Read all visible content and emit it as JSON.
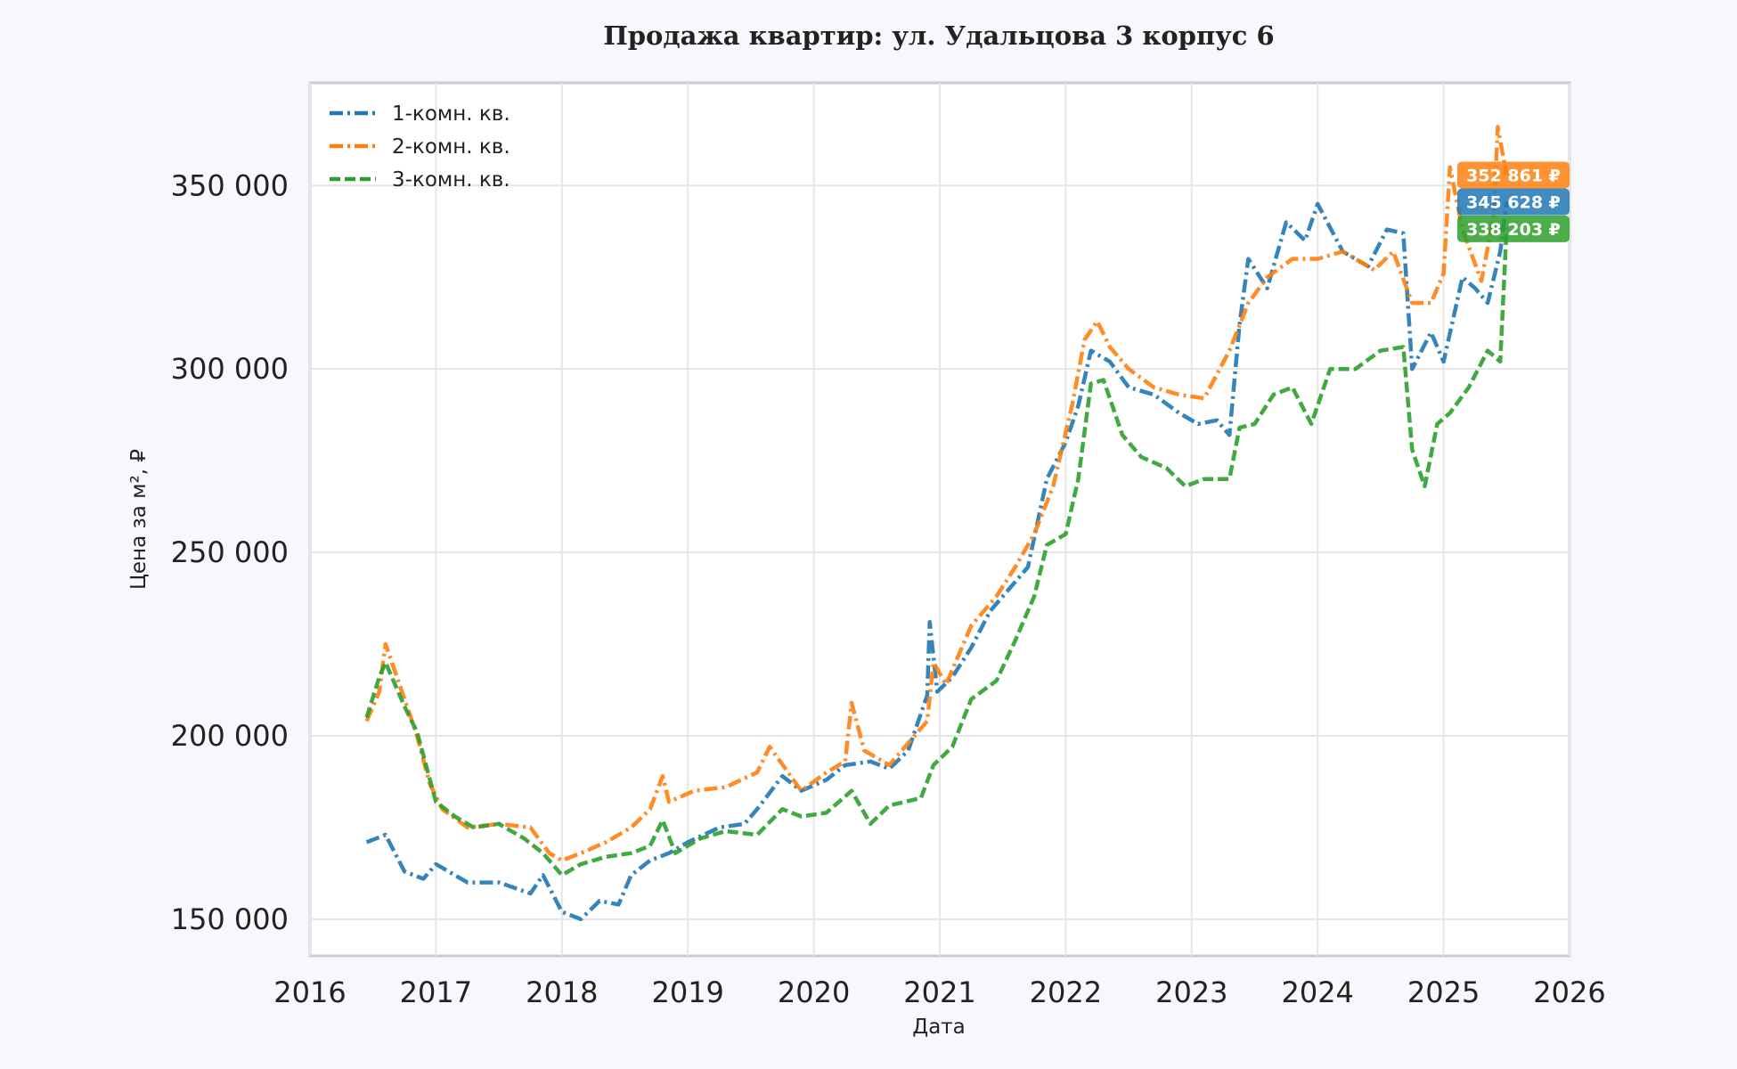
{
  "chart_data": {
    "type": "line",
    "title": "Продажа квартир: ул. Удальцова 3 корпус 6",
    "xlabel": "Дата",
    "ylabel": "Цена за м², ₽",
    "xlim": [
      2016,
      2026
    ],
    "ylim": [
      140000,
      378000
    ],
    "x_ticks": [
      "2016",
      "2017",
      "2018",
      "2019",
      "2020",
      "2021",
      "2022",
      "2023",
      "2024",
      "2025",
      "2026"
    ],
    "y_ticks": [
      "150 000",
      "200 000",
      "250 000",
      "300 000",
      "350 000"
    ],
    "grid": true,
    "legend_position": "top-left",
    "series": [
      {
        "name": "1-комн. кв.",
        "color": "#1f77b4",
        "dash": "dash-dot",
        "last_value_label": "345 628 ₽",
        "points": [
          [
            2016.45,
            171000
          ],
          [
            2016.6,
            173000
          ],
          [
            2016.75,
            163000
          ],
          [
            2016.9,
            161000
          ],
          [
            2017.0,
            165000
          ],
          [
            2017.25,
            160000
          ],
          [
            2017.5,
            160000
          ],
          [
            2017.75,
            157000
          ],
          [
            2017.85,
            162000
          ],
          [
            2018.0,
            152000
          ],
          [
            2018.15,
            150000
          ],
          [
            2018.3,
            155000
          ],
          [
            2018.45,
            154000
          ],
          [
            2018.55,
            162000
          ],
          [
            2018.7,
            166000
          ],
          [
            2018.85,
            168000
          ],
          [
            2019.0,
            171000
          ],
          [
            2019.25,
            175000
          ],
          [
            2019.45,
            176000
          ],
          [
            2019.55,
            180000
          ],
          [
            2019.75,
            189000
          ],
          [
            2019.9,
            185000
          ],
          [
            2020.1,
            188000
          ],
          [
            2020.25,
            192000
          ],
          [
            2020.45,
            193000
          ],
          [
            2020.6,
            191000
          ],
          [
            2020.75,
            196000
          ],
          [
            2020.9,
            211000
          ],
          [
            2020.92,
            231000
          ],
          [
            2020.98,
            212000
          ],
          [
            2021.1,
            216000
          ],
          [
            2021.25,
            224000
          ],
          [
            2021.4,
            234000
          ],
          [
            2021.55,
            240000
          ],
          [
            2021.7,
            246000
          ],
          [
            2021.85,
            270000
          ],
          [
            2022.0,
            280000
          ],
          [
            2022.1,
            290000
          ],
          [
            2022.2,
            305000
          ],
          [
            2022.35,
            302000
          ],
          [
            2022.5,
            295000
          ],
          [
            2022.7,
            293000
          ],
          [
            2022.9,
            288000
          ],
          [
            2023.05,
            285000
          ],
          [
            2023.2,
            286000
          ],
          [
            2023.3,
            282000
          ],
          [
            2023.38,
            312000
          ],
          [
            2023.45,
            330000
          ],
          [
            2023.6,
            322000
          ],
          [
            2023.75,
            340000
          ],
          [
            2023.9,
            335000
          ],
          [
            2024.0,
            345000
          ],
          [
            2024.2,
            332000
          ],
          [
            2024.4,
            328000
          ],
          [
            2024.55,
            338000
          ],
          [
            2024.68,
            337000
          ],
          [
            2024.75,
            300000
          ],
          [
            2024.9,
            310000
          ],
          [
            2025.0,
            302000
          ],
          [
            2025.15,
            325000
          ],
          [
            2025.25,
            322000
          ],
          [
            2025.35,
            318000
          ],
          [
            2025.45,
            332000
          ],
          [
            2025.5,
            345628
          ]
        ]
      },
      {
        "name": "2-комн. кв.",
        "color": "#ff7f0e",
        "dash": "dash-dot",
        "last_value_label": "352 861 ₽",
        "points": [
          [
            2016.45,
            204000
          ],
          [
            2016.55,
            212000
          ],
          [
            2016.6,
            225000
          ],
          [
            2016.75,
            210000
          ],
          [
            2016.85,
            200000
          ],
          [
            2016.95,
            187000
          ],
          [
            2017.05,
            180000
          ],
          [
            2017.25,
            175000
          ],
          [
            2017.5,
            176000
          ],
          [
            2017.75,
            175000
          ],
          [
            2017.9,
            168000
          ],
          [
            2018.0,
            166000
          ],
          [
            2018.15,
            168000
          ],
          [
            2018.35,
            171000
          ],
          [
            2018.55,
            175000
          ],
          [
            2018.7,
            180000
          ],
          [
            2018.8,
            189000
          ],
          [
            2018.85,
            182000
          ],
          [
            2019.05,
            185000
          ],
          [
            2019.3,
            186000
          ],
          [
            2019.55,
            190000
          ],
          [
            2019.65,
            197000
          ],
          [
            2019.9,
            185000
          ],
          [
            2020.1,
            190000
          ],
          [
            2020.25,
            193000
          ],
          [
            2020.3,
            209000
          ],
          [
            2020.4,
            196000
          ],
          [
            2020.6,
            192000
          ],
          [
            2020.75,
            198000
          ],
          [
            2020.9,
            204000
          ],
          [
            2020.95,
            220000
          ],
          [
            2021.05,
            214000
          ],
          [
            2021.25,
            230000
          ],
          [
            2021.45,
            238000
          ],
          [
            2021.6,
            246000
          ],
          [
            2021.75,
            255000
          ],
          [
            2021.9,
            268000
          ],
          [
            2022.05,
            290000
          ],
          [
            2022.15,
            308000
          ],
          [
            2022.25,
            313000
          ],
          [
            2022.35,
            306000
          ],
          [
            2022.5,
            300000
          ],
          [
            2022.7,
            295000
          ],
          [
            2022.9,
            293000
          ],
          [
            2023.1,
            292000
          ],
          [
            2023.3,
            305000
          ],
          [
            2023.45,
            318000
          ],
          [
            2023.6,
            325000
          ],
          [
            2023.8,
            330000
          ],
          [
            2024.0,
            330000
          ],
          [
            2024.2,
            332000
          ],
          [
            2024.45,
            327000
          ],
          [
            2024.6,
            332000
          ],
          [
            2024.75,
            318000
          ],
          [
            2024.9,
            318000
          ],
          [
            2025.0,
            326000
          ],
          [
            2025.05,
            355000
          ],
          [
            2025.15,
            338000
          ],
          [
            2025.3,
            324000
          ],
          [
            2025.4,
            342000
          ],
          [
            2025.43,
            366000
          ],
          [
            2025.5,
            352861
          ]
        ]
      },
      {
        "name": "3-комн. кв.",
        "color": "#2ca02c",
        "dash": "dashed",
        "last_value_label": "338 203 ₽",
        "points": [
          [
            2016.45,
            205000
          ],
          [
            2016.55,
            216000
          ],
          [
            2016.6,
            220000
          ],
          [
            2016.75,
            208000
          ],
          [
            2016.85,
            201000
          ],
          [
            2017.0,
            182000
          ],
          [
            2017.15,
            178000
          ],
          [
            2017.3,
            175000
          ],
          [
            2017.5,
            176000
          ],
          [
            2017.7,
            172000
          ],
          [
            2017.85,
            168000
          ],
          [
            2018.0,
            162000
          ],
          [
            2018.15,
            165000
          ],
          [
            2018.35,
            167000
          ],
          [
            2018.55,
            168000
          ],
          [
            2018.7,
            170000
          ],
          [
            2018.8,
            177000
          ],
          [
            2018.9,
            168000
          ],
          [
            2019.1,
            172000
          ],
          [
            2019.3,
            174000
          ],
          [
            2019.55,
            173000
          ],
          [
            2019.75,
            180000
          ],
          [
            2019.9,
            178000
          ],
          [
            2020.1,
            179000
          ],
          [
            2020.3,
            185000
          ],
          [
            2020.45,
            176000
          ],
          [
            2020.6,
            181000
          ],
          [
            2020.85,
            183000
          ],
          [
            2020.95,
            192000
          ],
          [
            2021.1,
            197000
          ],
          [
            2021.25,
            210000
          ],
          [
            2021.45,
            215000
          ],
          [
            2021.6,
            226000
          ],
          [
            2021.75,
            238000
          ],
          [
            2021.85,
            252000
          ],
          [
            2022.0,
            255000
          ],
          [
            2022.1,
            270000
          ],
          [
            2022.2,
            296000
          ],
          [
            2022.3,
            297000
          ],
          [
            2022.45,
            282000
          ],
          [
            2022.6,
            276000
          ],
          [
            2022.8,
            273000
          ],
          [
            2022.95,
            268000
          ],
          [
            2023.1,
            270000
          ],
          [
            2023.3,
            270000
          ],
          [
            2023.38,
            284000
          ],
          [
            2023.5,
            285000
          ],
          [
            2023.65,
            293000
          ],
          [
            2023.8,
            295000
          ],
          [
            2023.95,
            285000
          ],
          [
            2024.1,
            300000
          ],
          [
            2024.3,
            300000
          ],
          [
            2024.5,
            305000
          ],
          [
            2024.68,
            306000
          ],
          [
            2024.75,
            278000
          ],
          [
            2024.85,
            268000
          ],
          [
            2024.95,
            285000
          ],
          [
            2025.05,
            288000
          ],
          [
            2025.2,
            295000
          ],
          [
            2025.35,
            305000
          ],
          [
            2025.45,
            302000
          ],
          [
            2025.5,
            338203
          ]
        ]
      }
    ]
  }
}
